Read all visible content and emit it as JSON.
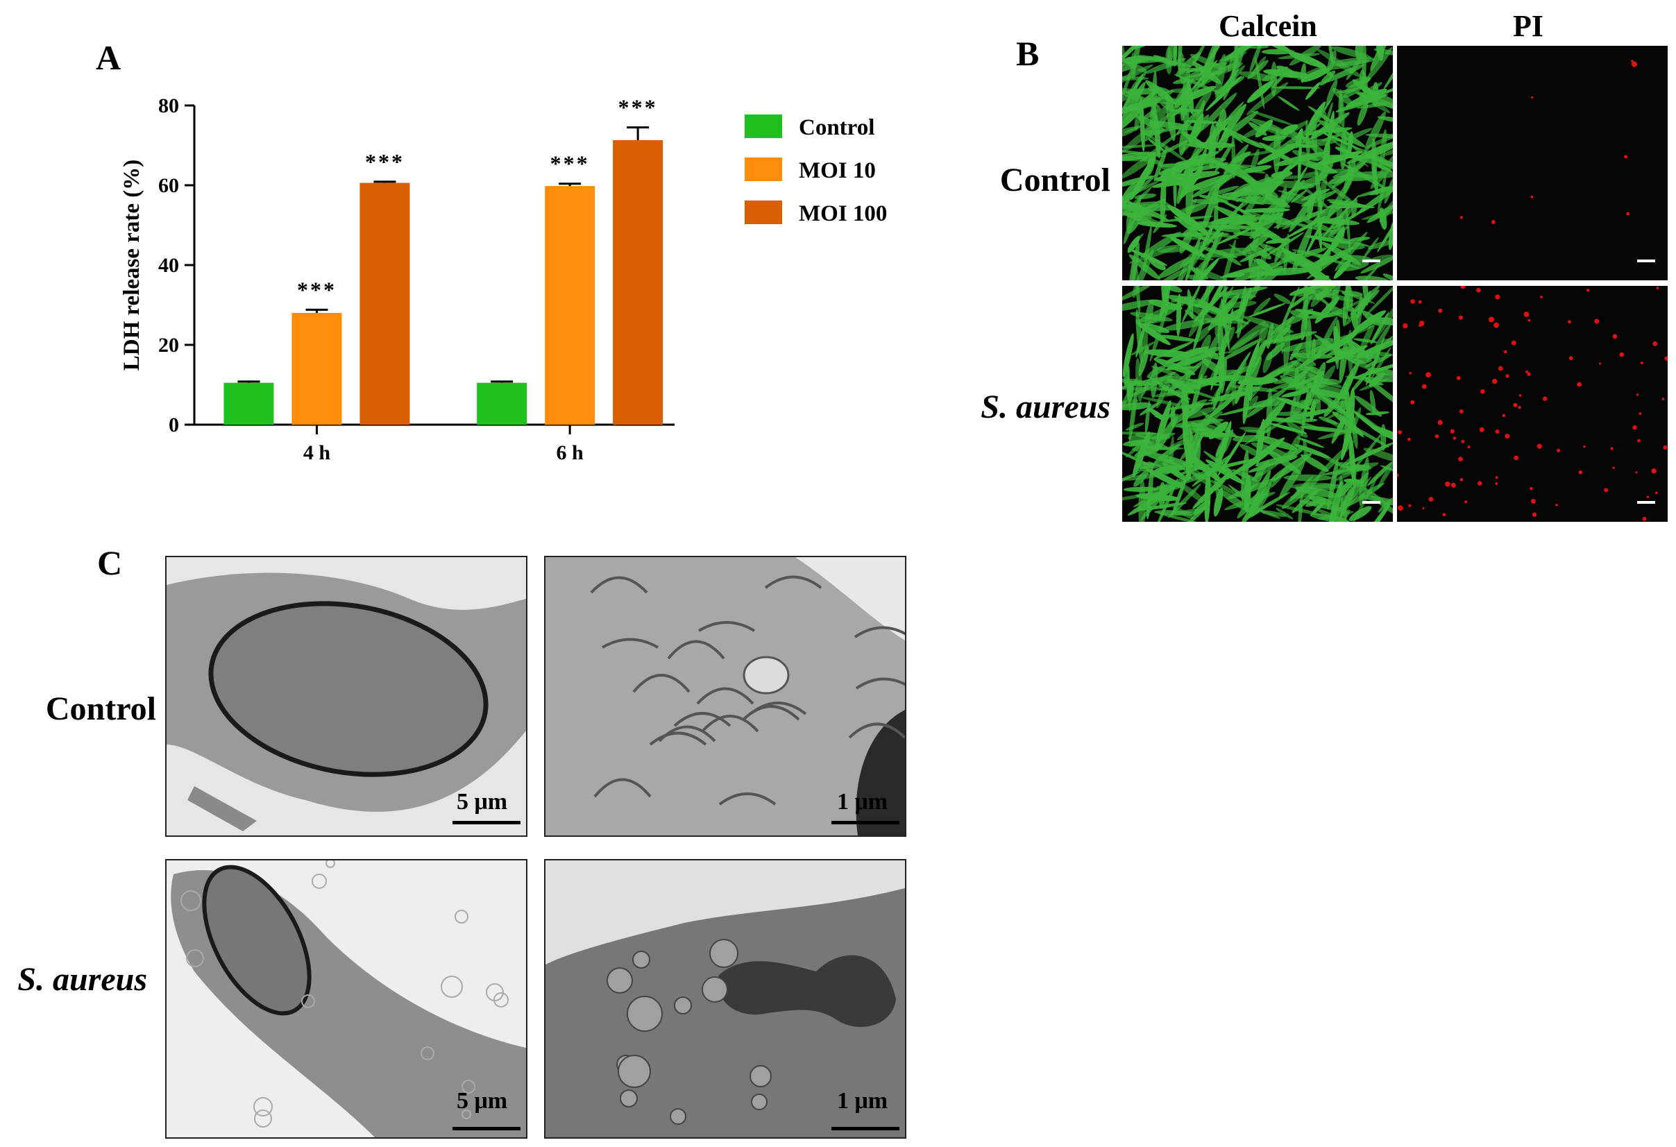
{
  "panels": {
    "a": {
      "letter": "A"
    },
    "b": {
      "letter": "B",
      "columns": [
        "Calcein",
        "PI"
      ],
      "rows": [
        "Control",
        "S. aureus"
      ],
      "colors": {
        "calcein": "#3cb43c",
        "pi": "#e01010",
        "background": "#050505"
      }
    },
    "c": {
      "letter": "C",
      "rows": [
        "Control",
        "S. aureus"
      ],
      "scalebars": [
        "5 μm",
        "1 μm",
        "5 μm",
        "1 μm"
      ]
    }
  },
  "chart_data": {
    "type": "bar",
    "categories": [
      "4 h",
      "6 h"
    ],
    "ylabel": "LDH release rate (%)",
    "xlabel": "",
    "ylim": [
      0,
      80
    ],
    "yticks": [
      0,
      20,
      40,
      60,
      80
    ],
    "series": [
      {
        "name": "Control",
        "color": "#1fc11f",
        "values": [
          10.5,
          10.5
        ],
        "errors": [
          0.3,
          0.3
        ],
        "sig": [
          "",
          ""
        ]
      },
      {
        "name": "MOI 10",
        "color": "#ff8c0a",
        "values": [
          28.0,
          59.8
        ],
        "errors": [
          0.8,
          0.6
        ],
        "sig": [
          "***",
          "***"
        ]
      },
      {
        "name": "MOI 100",
        "color": "#d95e00",
        "values": [
          60.6,
          71.3
        ],
        "errors": [
          0.3,
          3.2
        ],
        "sig": [
          "***",
          "***"
        ]
      }
    ],
    "legend_position": "right"
  }
}
